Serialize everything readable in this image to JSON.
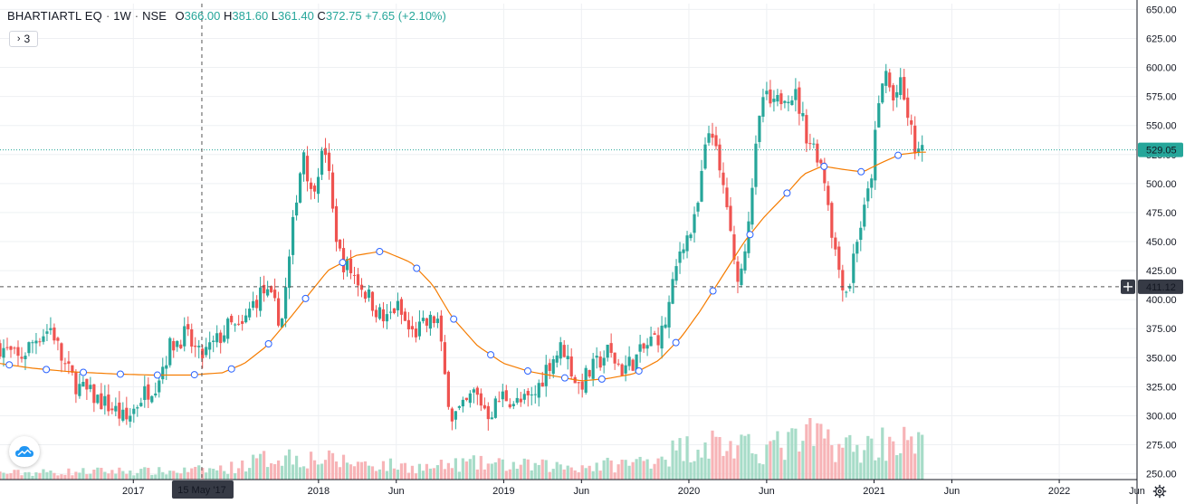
{
  "header": {
    "symbol": "BHARTIARTL EQ",
    "interval": "1W",
    "exchange": "NSE",
    "o_label": "O",
    "o_value": "366.00",
    "h_label": "H",
    "h_value": "381.60",
    "l_label": "L",
    "l_value": "361.40",
    "c_label": "C",
    "c_value": "372.75",
    "change": "+7.65 (+2.10%)",
    "collapsed_count": "3"
  },
  "crosshair": {
    "date_label": "15 May '17",
    "price_label": "411.12",
    "price": 411.12
  },
  "last_price": {
    "label": "529.05",
    "value": 529.05
  },
  "colors": {
    "up": "#26a69a",
    "down": "#ef5350",
    "vol_up": "#a7dcc8",
    "vol_down": "#f7b4b7",
    "ma": "#f57c00",
    "last_price_line": "#26a69a",
    "crosshair_label": "#363a45"
  },
  "chart_data": {
    "type": "candlestick",
    "title": "BHARTIARTL EQ · 1W · NSE",
    "ylim": [
      245,
      655
    ],
    "y_ticks": [
      "650.00",
      "625.00",
      "600.00",
      "575.00",
      "550.00",
      "525.00",
      "500.00",
      "475.00",
      "450.00",
      "425.00",
      "400.00",
      "375.00",
      "350.00",
      "325.00",
      "300.00",
      "275.00",
      "250.00"
    ],
    "x_ticks": [
      {
        "label": "2017",
        "t": 2017.0
      },
      {
        "label": "2018",
        "t": 2018.0
      },
      {
        "label": "Jun",
        "t": 2018.42
      },
      {
        "label": "2019",
        "t": 2019.0
      },
      {
        "label": "Jun",
        "t": 2019.42
      },
      {
        "label": "2020",
        "t": 2020.0
      },
      {
        "label": "Jun",
        "t": 2020.42
      },
      {
        "label": "2021",
        "t": 2021.0
      },
      {
        "label": "Jun",
        "t": 2021.42
      },
      {
        "label": "2022",
        "t": 2022.0
      },
      {
        "label": "Jun",
        "t": 2022.42
      }
    ],
    "x_range": [
      2016.28,
      2022.42
    ],
    "grid": true,
    "close_path": [
      [
        2016.28,
        360
      ],
      [
        2016.38,
        348
      ],
      [
        2016.48,
        368
      ],
      [
        2016.56,
        376
      ],
      [
        2016.62,
        345
      ],
      [
        2016.7,
        325
      ],
      [
        2016.8,
        315
      ],
      [
        2016.9,
        305
      ],
      [
        2016.96,
        295
      ],
      [
        2017.05,
        318
      ],
      [
        2017.12,
        328
      ],
      [
        2017.2,
        360
      ],
      [
        2017.28,
        370
      ],
      [
        2017.36,
        350
      ],
      [
        2017.44,
        362
      ],
      [
        2017.52,
        378
      ],
      [
        2017.58,
        372
      ],
      [
        2017.64,
        395
      ],
      [
        2017.7,
        408
      ],
      [
        2017.76,
        395
      ],
      [
        2017.8,
        380
      ],
      [
        2017.84,
        430
      ],
      [
        2017.88,
        490
      ],
      [
        2017.92,
        530
      ],
      [
        2017.96,
        490
      ],
      [
        2018.0,
        515
      ],
      [
        2018.04,
        530
      ],
      [
        2018.08,
        470
      ],
      [
        2018.12,
        435
      ],
      [
        2018.2,
        420
      ],
      [
        2018.28,
        400
      ],
      [
        2018.36,
        380
      ],
      [
        2018.42,
        395
      ],
      [
        2018.5,
        370
      ],
      [
        2018.58,
        378
      ],
      [
        2018.64,
        385
      ],
      [
        2018.68,
        335
      ],
      [
        2018.72,
        300
      ],
      [
        2018.78,
        305
      ],
      [
        2018.84,
        320
      ],
      [
        2018.92,
        302
      ],
      [
        2019.0,
        318
      ],
      [
        2019.08,
        310
      ],
      [
        2019.16,
        315
      ],
      [
        2019.24,
        345
      ],
      [
        2019.32,
        360
      ],
      [
        2019.4,
        325
      ],
      [
        2019.48,
        340
      ],
      [
        2019.56,
        355
      ],
      [
        2019.64,
        340
      ],
      [
        2019.72,
        350
      ],
      [
        2019.8,
        365
      ],
      [
        2019.86,
        372
      ],
      [
        2019.9,
        400
      ],
      [
        2019.96,
        450
      ],
      [
        2020.0,
        455
      ],
      [
        2020.04,
        470
      ],
      [
        2020.08,
        520
      ],
      [
        2020.12,
        555
      ],
      [
        2020.16,
        510
      ],
      [
        2020.2,
        490
      ],
      [
        2020.24,
        430
      ],
      [
        2020.28,
        420
      ],
      [
        2020.32,
        470
      ],
      [
        2020.36,
        525
      ],
      [
        2020.4,
        575
      ],
      [
        2020.46,
        565
      ],
      [
        2020.52,
        580
      ],
      [
        2020.58,
        575
      ],
      [
        2020.64,
        540
      ],
      [
        2020.7,
        525
      ],
      [
        2020.74,
        500
      ],
      [
        2020.78,
        450
      ],
      [
        2020.82,
        420
      ],
      [
        2020.86,
        405
      ],
      [
        2020.9,
        450
      ],
      [
        2020.94,
        470
      ],
      [
        2020.98,
        500
      ],
      [
        2021.02,
        560
      ],
      [
        2021.06,
        600
      ],
      [
        2021.1,
        570
      ],
      [
        2021.14,
        585
      ],
      [
        2021.18,
        560
      ],
      [
        2021.22,
        530
      ],
      [
        2021.26,
        525
      ]
    ],
    "ma_path": [
      [
        2016.28,
        345
      ],
      [
        2016.45,
        341
      ],
      [
        2016.65,
        338
      ],
      [
        2016.9,
        336
      ],
      [
        2017.1,
        335
      ],
      [
        2017.3,
        335
      ],
      [
        2017.48,
        337
      ],
      [
        2017.6,
        345
      ],
      [
        2017.72,
        360
      ],
      [
        2017.85,
        385
      ],
      [
        2017.95,
        405
      ],
      [
        2018.05,
        425
      ],
      [
        2018.2,
        438
      ],
      [
        2018.35,
        442
      ],
      [
        2018.5,
        432
      ],
      [
        2018.62,
        412
      ],
      [
        2018.72,
        385
      ],
      [
        2018.86,
        360
      ],
      [
        2019.0,
        345
      ],
      [
        2019.14,
        338
      ],
      [
        2019.28,
        334
      ],
      [
        2019.42,
        330
      ],
      [
        2019.56,
        332
      ],
      [
        2019.7,
        336
      ],
      [
        2019.84,
        348
      ],
      [
        2019.96,
        368
      ],
      [
        2020.06,
        390
      ],
      [
        2020.18,
        420
      ],
      [
        2020.3,
        450
      ],
      [
        2020.4,
        470
      ],
      [
        2020.52,
        490
      ],
      [
        2020.62,
        508
      ],
      [
        2020.72,
        515
      ],
      [
        2020.84,
        512
      ],
      [
        2020.94,
        510
      ],
      [
        2021.04,
        518
      ],
      [
        2021.14,
        525
      ],
      [
        2021.24,
        527
      ],
      [
        2021.28,
        527
      ]
    ],
    "volume_path": [
      [
        2016.28,
        0.12
      ],
      [
        2016.6,
        0.14
      ],
      [
        2016.9,
        0.16
      ],
      [
        2017.2,
        0.15
      ],
      [
        2017.5,
        0.2
      ],
      [
        2017.8,
        0.45
      ],
      [
        2018.0,
        0.38
      ],
      [
        2018.3,
        0.28
      ],
      [
        2018.6,
        0.22
      ],
      [
        2018.8,
        0.3
      ],
      [
        2019.1,
        0.26
      ],
      [
        2019.4,
        0.24
      ],
      [
        2019.7,
        0.3
      ],
      [
        2019.9,
        0.5
      ],
      [
        2020.1,
        0.7
      ],
      [
        2020.3,
        0.55
      ],
      [
        2020.5,
        0.62
      ],
      [
        2020.7,
        0.8
      ],
      [
        2020.9,
        0.55
      ],
      [
        2021.1,
        0.75
      ],
      [
        2021.26,
        0.6
      ]
    ]
  }
}
